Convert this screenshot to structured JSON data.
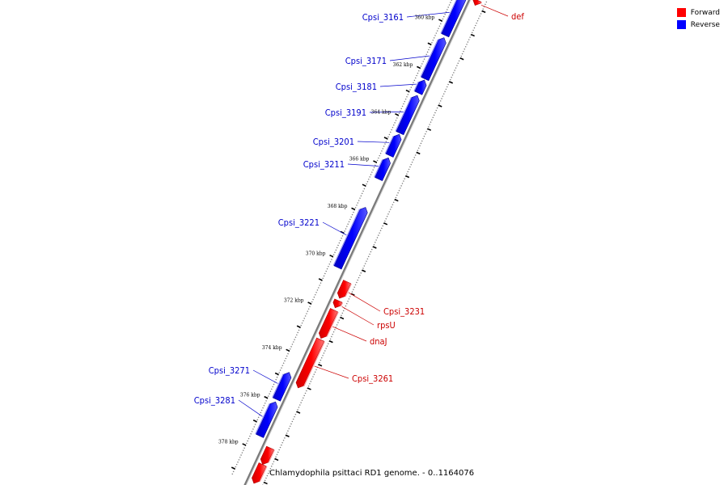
{
  "legend": {
    "items": [
      {
        "label": "Forward",
        "color": "#ff0000"
      },
      {
        "label": "Reverse",
        "color": "#0000ff"
      }
    ]
  },
  "caption": "Chlamydophila psittaci RD1 genome. - 0..1164076",
  "ticks": [
    "360 kbp",
    "362 kbp",
    "364 kbp",
    "366 kbp",
    "368 kbp",
    "370 kbp",
    "372 kbp",
    "374 kbp",
    "376 kbp",
    "378 kbp"
  ],
  "genes": [
    {
      "name": "def",
      "strand": "forward",
      "start": 358.7,
      "end": 358.92
    },
    {
      "name": "Cpsi_3161",
      "strand": "reverse",
      "start": 358.7,
      "end": 360.45
    },
    {
      "name": "Cpsi_3171",
      "strand": "reverse",
      "start": 360.55,
      "end": 362.3
    },
    {
      "name": "Cpsi_3181",
      "strand": "reverse",
      "start": 362.35,
      "end": 362.9
    },
    {
      "name": "Cpsi_3191",
      "strand": "reverse",
      "start": 363.0,
      "end": 364.6
    },
    {
      "name": "Cpsi_3201",
      "strand": "reverse",
      "start": 364.65,
      "end": 365.55
    },
    {
      "name": "Cpsi_3211",
      "strand": "reverse",
      "start": 365.65,
      "end": 366.55
    },
    {
      "name": "Cpsi_3221",
      "strand": "reverse",
      "start": 367.75,
      "end": 370.3
    },
    {
      "name": "Cpsi_3231",
      "strand": "forward",
      "start": 370.65,
      "end": 371.35
    },
    {
      "name": "rpsU",
      "strand": "forward",
      "start": 371.45,
      "end": 371.75
    },
    {
      "name": "dnaJ",
      "strand": "forward",
      "start": 371.85,
      "end": 373.05
    },
    {
      "name": "Cpsi_3261",
      "strand": "forward",
      "start": 373.1,
      "end": 375.15
    },
    {
      "name": "Cpsi_3271",
      "strand": "reverse",
      "start": 374.75,
      "end": 375.9
    },
    {
      "name": "Cpsi_3281",
      "strand": "reverse",
      "start": 376.0,
      "end": 377.45
    },
    {
      "name": "",
      "strand": "forward",
      "start": 377.7,
      "end": 378.4
    },
    {
      "name": "",
      "strand": "forward",
      "start": 378.4,
      "end": 379.2
    }
  ]
}
